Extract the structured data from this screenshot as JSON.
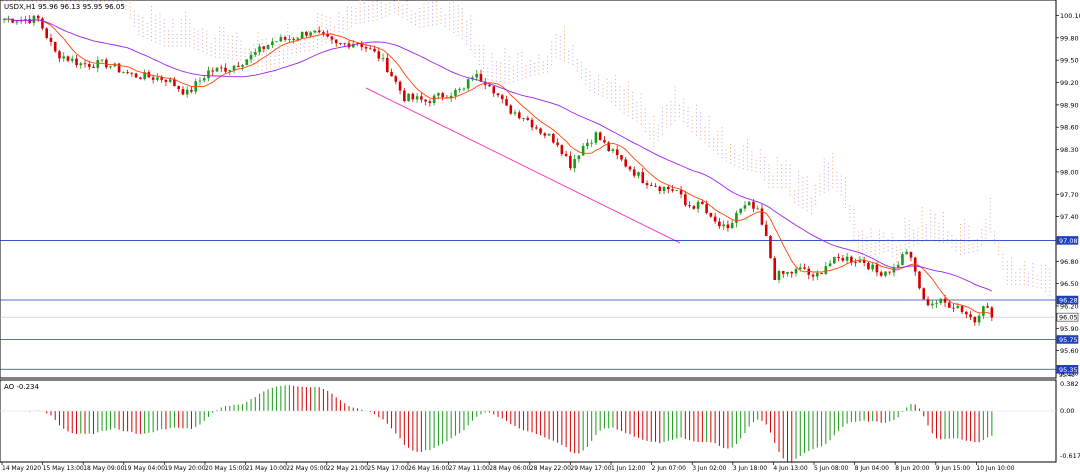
{
  "header": {
    "symbol_label": "USDX,H1",
    "ohlc_label": "95.96 96.13 95.95 96.05"
  },
  "indicator": {
    "label": "AO -0.234",
    "ticks": [
      "0.382",
      "0.00",
      "-0.617"
    ]
  },
  "price_axis": {
    "ticks": [
      "100.10",
      "99.80",
      "99.50",
      "99.20",
      "98.90",
      "98.60",
      "98.30",
      "98.00",
      "97.70",
      "97.40",
      "96.80",
      "96.50",
      "96.20",
      "95.90",
      "95.60",
      "95.30"
    ],
    "markers": [
      {
        "label": "97.08",
        "kind": "level",
        "color": "#1f3fbf"
      },
      {
        "label": "96.28",
        "kind": "level",
        "color": "#1f3fbf"
      },
      {
        "label": "96.05",
        "kind": "current",
        "color": "#000000"
      },
      {
        "label": "95.75",
        "kind": "level",
        "color": "#1f3fbf"
      },
      {
        "label": "95.35",
        "kind": "level",
        "color": "#1f3fbf"
      }
    ],
    "partial_top_label": "95.40"
  },
  "time_axis": {
    "labels": [
      "14 May 2020",
      "15 May 13:00",
      "18 May 09:00",
      "19 May 04:00",
      "19 May 20:00",
      "20 May 15:00",
      "21 May 10:00",
      "22 May 05:00",
      "22 May 21:00",
      "25 May 17:00",
      "26 May 16:00",
      "27 May 11:00",
      "28 May 06:00",
      "28 May 22:00",
      "29 May 17:00",
      "1 Jun 12:00",
      "2 Jun 07:00",
      "3 Jun 02:00",
      "3 Jun 18:00",
      "4 Jun 13:00",
      "5 Jun 08:00",
      "8 Jun 04:00",
      "8 Jun 20:00",
      "9 Jun 15:00",
      "10 Jun 10:00"
    ]
  },
  "colors": {
    "bull": "#1a9a1a",
    "bear": "#d40000",
    "ma_fast": "#ff4500",
    "ma_slow": "#a020f0",
    "channel": "#ff3cc8",
    "level_line": "#1f3fbf",
    "cloud_a": "#f4a460",
    "cloud_b": "#c8a0e0"
  },
  "chart_data": {
    "type": "candlestick",
    "symbol": "USDX",
    "timeframe": "H1",
    "path": [
      [
        0,
        100.05
      ],
      [
        8,
        100.05
      ],
      [
        12,
        99.6
      ],
      [
        18,
        99.45
      ],
      [
        24,
        99.45
      ],
      [
        30,
        99.3
      ],
      [
        38,
        99.25
      ],
      [
        43,
        99.05
      ],
      [
        48,
        99.35
      ],
      [
        53,
        99.4
      ],
      [
        58,
        99.55
      ],
      [
        63,
        99.75
      ],
      [
        68,
        99.8
      ],
      [
        72,
        99.9
      ],
      [
        78,
        99.7
      ],
      [
        83,
        99.75
      ],
      [
        88,
        99.55
      ],
      [
        90,
        99.4
      ],
      [
        94,
        99.0
      ],
      [
        99,
        98.95
      ],
      [
        104,
        99.05
      ],
      [
        108,
        99.1
      ],
      [
        110,
        99.3
      ],
      [
        114,
        99.2
      ],
      [
        118,
        98.85
      ],
      [
        122,
        98.75
      ],
      [
        126,
        98.55
      ],
      [
        130,
        98.4
      ],
      [
        133,
        98.1
      ],
      [
        136,
        98.35
      ],
      [
        139,
        98.5
      ],
      [
        142,
        98.3
      ],
      [
        146,
        98.1
      ],
      [
        150,
        97.9
      ],
      [
        154,
        97.8
      ],
      [
        158,
        97.75
      ],
      [
        160,
        97.55
      ],
      [
        164,
        97.55
      ],
      [
        166,
        97.35
      ],
      [
        170,
        97.2
      ],
      [
        172,
        97.45
      ],
      [
        175,
        97.55
      ],
      [
        177,
        97.45
      ],
      [
        179,
        97.1
      ],
      [
        181,
        96.6
      ],
      [
        185,
        96.65
      ],
      [
        188,
        96.7
      ],
      [
        190,
        96.55
      ],
      [
        193,
        96.75
      ],
      [
        197,
        96.85
      ],
      [
        202,
        96.8
      ],
      [
        205,
        96.65
      ],
      [
        209,
        96.7
      ],
      [
        212,
        96.95
      ],
      [
        214,
        96.65
      ],
      [
        216,
        96.25
      ],
      [
        220,
        96.25
      ],
      [
        224,
        96.2
      ],
      [
        228,
        96.0
      ],
      [
        230,
        96.25
      ],
      [
        232,
        96.05
      ]
    ],
    "total_bars": 233,
    "note_ylim": [
      95.3,
      100.15
    ]
  }
}
